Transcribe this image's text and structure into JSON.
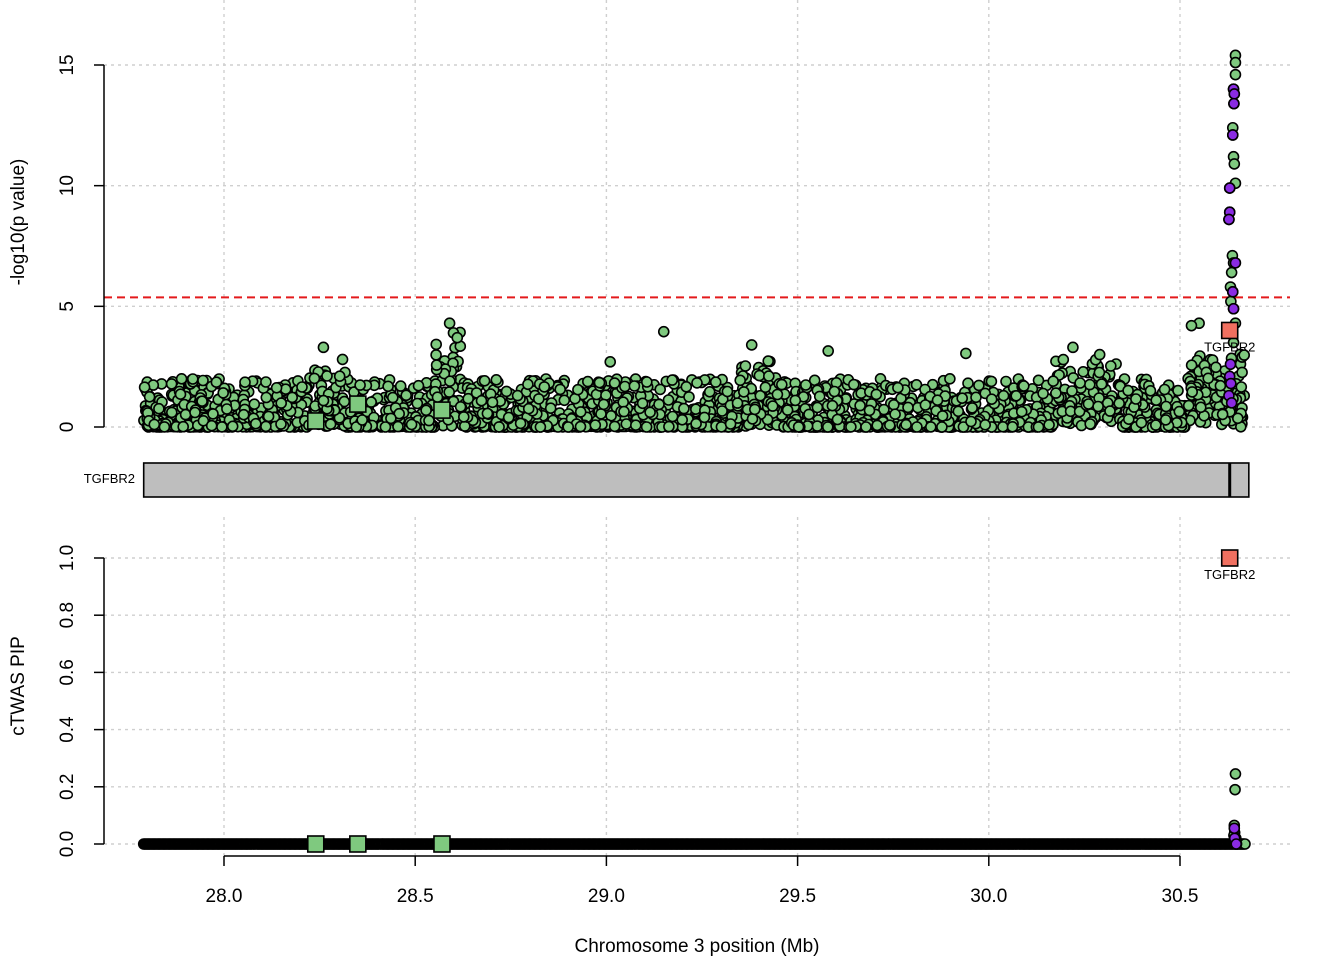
{
  "chart_data": [
    {
      "panel": "top",
      "type": "scatter",
      "ylabel": "-log10(p value)",
      "xlim": [
        27.8,
        30.7
      ],
      "ylim": [
        0,
        15.5
      ],
      "yticks": [
        "0",
        "5",
        "10",
        "15"
      ],
      "grid": true,
      "threshold_line": {
        "y": 5.37,
        "color": "#e41a1c",
        "style": "dashed"
      },
      "colors": {
        "snp": "#7fc97f",
        "snp_credible": "#8a2be2",
        "gene": "#7fc97f",
        "gene_highlight": "#f07060"
      },
      "genes": [
        {
          "name": "",
          "x": 28.24,
          "y": 0.25
        },
        {
          "name": "",
          "x": 28.35,
          "y": 0.95
        },
        {
          "name": "",
          "x": 28.57,
          "y": 0.7
        },
        {
          "name": "TGFBR2",
          "x": 30.63,
          "y": 4.0,
          "highlight": true
        }
      ],
      "peak_snps": [
        {
          "x": 30.645,
          "y": 15.4
        },
        {
          "x": 30.645,
          "y": 15.1
        },
        {
          "x": 30.645,
          "y": 14.6
        },
        {
          "x": 30.64,
          "y": 14.0
        },
        {
          "x": 30.642,
          "y": 13.8
        },
        {
          "x": 30.641,
          "y": 13.4
        },
        {
          "x": 30.638,
          "y": 12.4
        },
        {
          "x": 30.638,
          "y": 12.1
        },
        {
          "x": 30.64,
          "y": 11.2
        },
        {
          "x": 30.642,
          "y": 10.9
        },
        {
          "x": 30.645,
          "y": 10.1
        },
        {
          "x": 30.63,
          "y": 9.9
        },
        {
          "x": 30.63,
          "y": 8.9
        },
        {
          "x": 30.628,
          "y": 8.6
        },
        {
          "x": 30.637,
          "y": 7.1
        },
        {
          "x": 30.64,
          "y": 6.8
        },
        {
          "x": 30.635,
          "y": 6.4
        },
        {
          "x": 30.632,
          "y": 5.8
        },
        {
          "x": 30.638,
          "y": 5.6
        },
        {
          "x": 30.633,
          "y": 5.2
        },
        {
          "x": 30.64,
          "y": 4.9
        },
        {
          "x": 30.645,
          "y": 4.3
        },
        {
          "x": 30.627,
          "y": 3.9
        },
        {
          "x": 30.64,
          "y": 3.5
        },
        {
          "x": 30.55,
          "y": 4.3
        },
        {
          "x": 30.53,
          "y": 4.2
        },
        {
          "x": 29.15,
          "y": 3.95
        },
        {
          "x": 28.26,
          "y": 3.3
        },
        {
          "x": 28.31,
          "y": 2.8
        },
        {
          "x": 29.01,
          "y": 2.7
        },
        {
          "x": 29.38,
          "y": 3.4
        },
        {
          "x": 29.58,
          "y": 3.15
        },
        {
          "x": 29.94,
          "y": 3.05
        },
        {
          "x": 30.22,
          "y": 3.3
        },
        {
          "x": 30.29,
          "y": 3.0
        },
        {
          "x": 28.59,
          "y": 4.3
        },
        {
          "x": 28.6,
          "y": 3.9
        },
        {
          "x": 28.61,
          "y": 3.7
        }
      ],
      "credible_snps": [
        {
          "x": 30.64,
          "y": 14.0
        },
        {
          "x": 30.642,
          "y": 13.8
        },
        {
          "x": 30.641,
          "y": 13.4
        },
        {
          "x": 30.638,
          "y": 12.1
        },
        {
          "x": 30.63,
          "y": 9.9
        },
        {
          "x": 30.63,
          "y": 8.9
        },
        {
          "x": 30.628,
          "y": 8.6
        },
        {
          "x": 30.645,
          "y": 6.8
        },
        {
          "x": 30.638,
          "y": 5.6
        },
        {
          "x": 30.64,
          "y": 4.9
        },
        {
          "x": 30.632,
          "y": 2.6
        },
        {
          "x": 30.63,
          "y": 2.1
        },
        {
          "x": 30.633,
          "y": 1.8
        },
        {
          "x": 30.628,
          "y": 1.3
        },
        {
          "x": 30.635,
          "y": 1.0
        }
      ]
    },
    {
      "panel": "gene-track",
      "type": "gene-track",
      "genes": [
        {
          "name": "TGFBR2",
          "start": 27.79,
          "end": 30.68,
          "tss": 30.63
        }
      ]
    },
    {
      "panel": "bottom",
      "type": "scatter",
      "ylabel": "cTWAS PIP",
      "xlabel": "Chromosome 3 position (Mb)",
      "xlim": [
        27.8,
        30.7
      ],
      "ylim": [
        0,
        1
      ],
      "xticks": [
        "28.0",
        "28.5",
        "29.0",
        "29.5",
        "30.0",
        "30.5"
      ],
      "yticks": [
        "0.0",
        "0.2",
        "0.4",
        "0.6",
        "0.8",
        "1.0"
      ],
      "grid": true,
      "genes": [
        {
          "name": "",
          "x": 28.24,
          "y": 0.0
        },
        {
          "name": "",
          "x": 28.35,
          "y": 0.0
        },
        {
          "name": "",
          "x": 28.57,
          "y": 0.0
        },
        {
          "name": "TGFBR2",
          "x": 30.63,
          "y": 1.0,
          "highlight": true
        }
      ],
      "snps_nonzero": [
        {
          "x": 30.645,
          "y": 0.245
        },
        {
          "x": 30.644,
          "y": 0.19
        },
        {
          "x": 30.642,
          "y": 0.065
        },
        {
          "x": 30.643,
          "y": 0.04
        },
        {
          "x": 30.641,
          "y": 0.03
        },
        {
          "x": 30.646,
          "y": 0.02
        },
        {
          "x": 30.648,
          "y": 0.0
        }
      ],
      "credible_snps": [
        {
          "x": 30.642,
          "y": 0.055
        },
        {
          "x": 30.643,
          "y": 0.02
        },
        {
          "x": 30.647,
          "y": 0.0
        }
      ]
    }
  ]
}
